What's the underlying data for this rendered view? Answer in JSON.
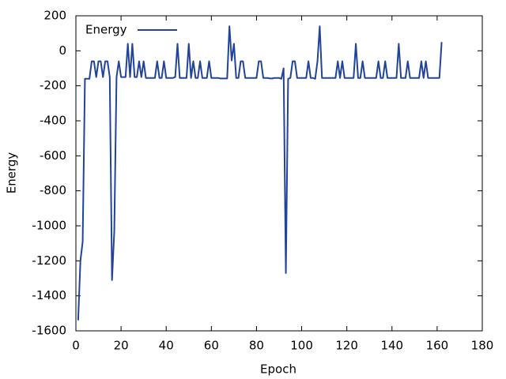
{
  "chart_data": {
    "type": "line",
    "xlabel": "Epoch",
    "ylabel": "Energy",
    "x": [
      1,
      2,
      3,
      4,
      5,
      6,
      7,
      8,
      9,
      10,
      11,
      12,
      13,
      14,
      15,
      16,
      17,
      18,
      19,
      20,
      21,
      22,
      23,
      24,
      25,
      26,
      27,
      28,
      29,
      30,
      31,
      32,
      33,
      34,
      35,
      36,
      37,
      38,
      39,
      40,
      41,
      42,
      43,
      44,
      45,
      46,
      47,
      48,
      49,
      50,
      51,
      52,
      53,
      54,
      55,
      56,
      57,
      58,
      59,
      60,
      61,
      62,
      63,
      64,
      65,
      66,
      67,
      68,
      69,
      70,
      71,
      72,
      73,
      74,
      75,
      76,
      77,
      78,
      79,
      80,
      81,
      82,
      83,
      84,
      85,
      86,
      87,
      88,
      89,
      90,
      91,
      92,
      93,
      94,
      95,
      96,
      97,
      98,
      99,
      100,
      101,
      102,
      103,
      104,
      105,
      106,
      107,
      108,
      109,
      110,
      111,
      112,
      113,
      114,
      115,
      116,
      117,
      118,
      119,
      120,
      121,
      122,
      123,
      124,
      125,
      126,
      127,
      128,
      129,
      130,
      131,
      132,
      133,
      134,
      135,
      136,
      137,
      138,
      139,
      140,
      141,
      142,
      143,
      144,
      145,
      146,
      147,
      148,
      149,
      150,
      151,
      152,
      153,
      154,
      155,
      156,
      157,
      158,
      159,
      160,
      161,
      162
    ],
    "series": [
      {
        "name": "Energy",
        "color": "#21439a",
        "values": [
          -1540,
          -1200,
          -1090,
          -160,
          -160,
          -160,
          -60,
          -60,
          -150,
          -60,
          -60,
          -150,
          -60,
          -60,
          -150,
          -1310,
          -1030,
          -150,
          -60,
          -150,
          -150,
          -150,
          40,
          -150,
          40,
          -150,
          -150,
          -60,
          -150,
          -60,
          -155,
          -155,
          -155,
          -155,
          -155,
          -60,
          -155,
          -155,
          -60,
          -155,
          -155,
          -155,
          -155,
          -150,
          40,
          -155,
          -155,
          -155,
          -155,
          40,
          -155,
          -60,
          -155,
          -155,
          -60,
          -155,
          -155,
          -155,
          -60,
          -155,
          -155,
          -155,
          -155,
          -158,
          -158,
          -158,
          -158,
          140,
          -55,
          40,
          -155,
          -155,
          -60,
          -60,
          -155,
          -155,
          -155,
          -155,
          -155,
          -155,
          -60,
          -60,
          -155,
          -155,
          -155,
          -158,
          -158,
          -155,
          -155,
          -155,
          -160,
          -100,
          -1270,
          -160,
          -155,
          -60,
          -60,
          -155,
          -155,
          -155,
          -155,
          -155,
          -60,
          -155,
          -155,
          -160,
          -60,
          140,
          -155,
          -155,
          -155,
          -155,
          -155,
          -155,
          -155,
          -60,
          -155,
          -60,
          -155,
          -155,
          -155,
          -155,
          -155,
          40,
          -155,
          -155,
          -60,
          -155,
          -155,
          -155,
          -155,
          -155,
          -155,
          -60,
          -155,
          -155,
          -60,
          -155,
          -155,
          -155,
          -155,
          -155,
          40,
          -155,
          -155,
          -155,
          -60,
          -155,
          -155,
          -155,
          -155,
          -155,
          -60,
          -155,
          -60,
          -155,
          -155,
          -155,
          -155,
          -155,
          -155,
          50
        ]
      }
    ],
    "xlim": [
      0,
      180
    ],
    "xticks": [
      0,
      20,
      40,
      60,
      80,
      100,
      120,
      140,
      160,
      180
    ],
    "ylim": [
      -1600,
      200
    ],
    "yticks": [
      -1600,
      -1400,
      -1200,
      -1000,
      -800,
      -600,
      -400,
      -200,
      0,
      200
    ],
    "grid": false,
    "legend": "upper left"
  }
}
